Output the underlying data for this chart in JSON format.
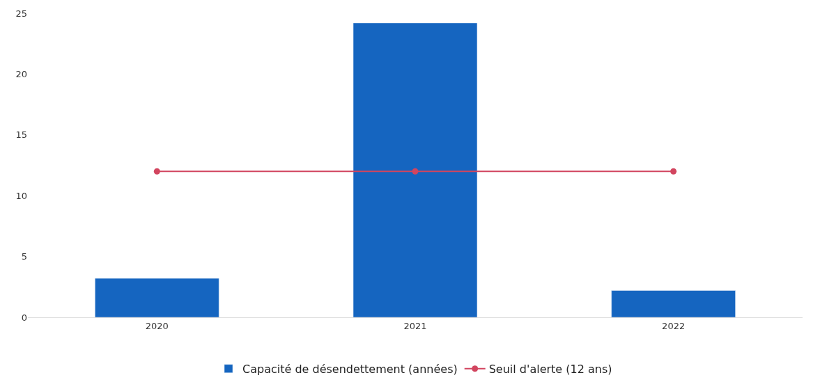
{
  "chart_data": {
    "type": "bar",
    "categories": [
      "2020",
      "2021",
      "2022"
    ],
    "series": [
      {
        "name": "Capacité de désendettement (années)",
        "color": "#1565c0",
        "values": [
          3.2,
          24.2,
          2.2
        ]
      },
      {
        "name": "Seuil d'alerte (12 ans)",
        "type": "line",
        "color": "#d2455f",
        "marker": "circle",
        "values": [
          12,
          12,
          12
        ]
      }
    ],
    "ylim": [
      0,
      25
    ],
    "yticks": [
      0,
      5,
      10,
      15,
      20,
      25
    ],
    "legend": "bottom"
  }
}
